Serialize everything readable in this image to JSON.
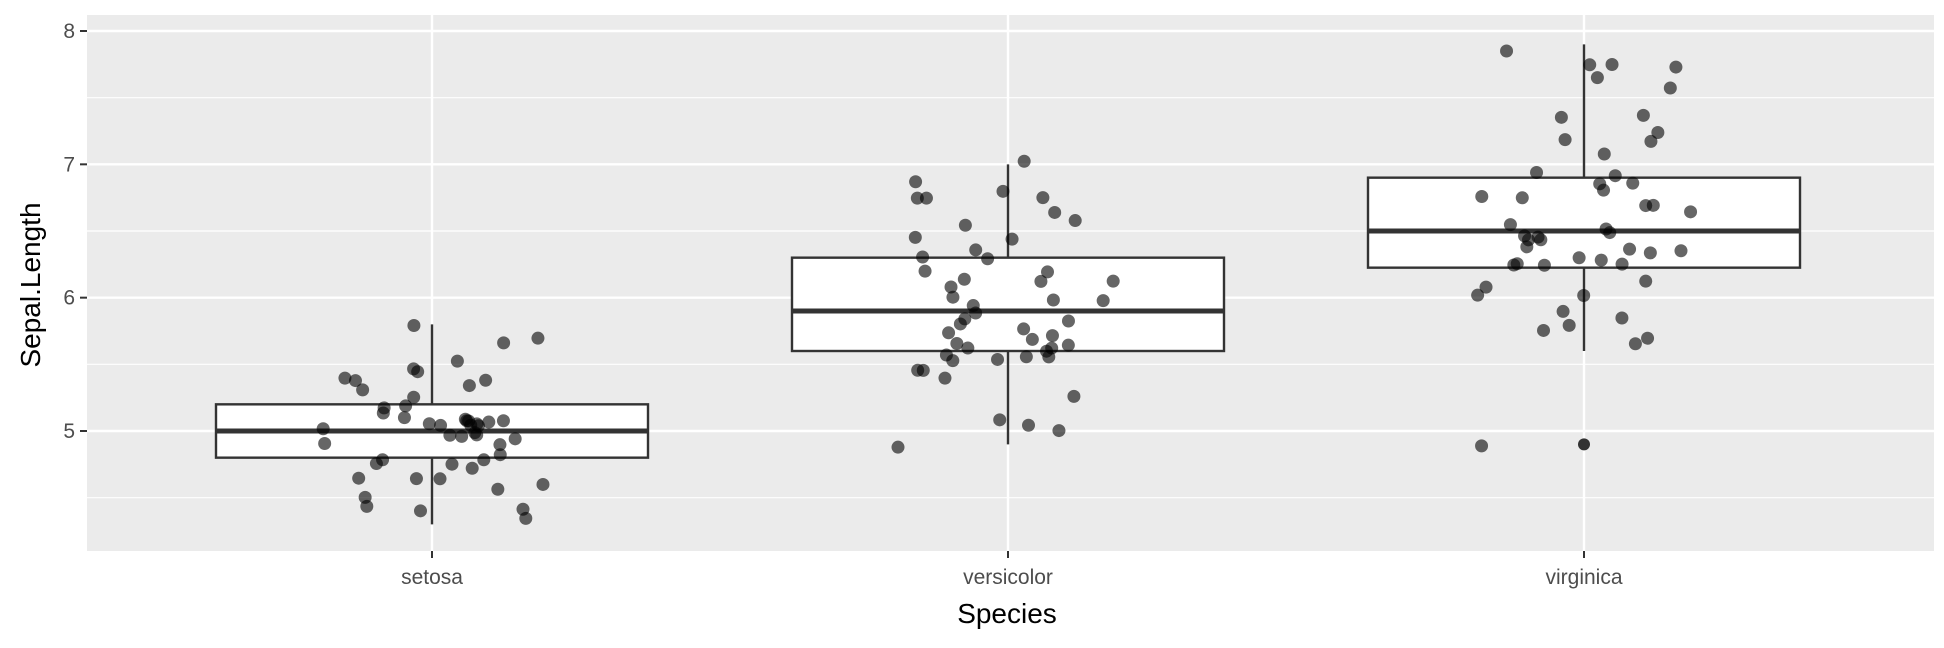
{
  "chart_data": {
    "type": "boxplot",
    "title": "",
    "xlabel": "Species",
    "ylabel": "Sepal.Length",
    "ylim": [
      4.1,
      8.1
    ],
    "yticks": [
      5,
      6,
      7,
      8
    ],
    "grid": true,
    "background": "#ebebeb",
    "categories": [
      "setosa",
      "versicolor",
      "virginica"
    ],
    "boxes": [
      {
        "category": "setosa",
        "whisker_low": 4.3,
        "q1": 4.8,
        "median": 5.0,
        "q3": 5.2,
        "whisker_high": 5.8,
        "outliers": []
      },
      {
        "category": "versicolor",
        "whisker_low": 4.9,
        "q1": 5.6,
        "median": 5.9,
        "q3": 6.3,
        "whisker_high": 7.0,
        "outliers": []
      },
      {
        "category": "virginica",
        "whisker_low": 5.6,
        "q1": 6.225,
        "median": 6.5,
        "q3": 6.9,
        "whisker_high": 7.9,
        "outliers": [
          4.9
        ]
      }
    ],
    "points": [
      {
        "category": "setosa",
        "values": [
          5.1,
          4.9,
          4.7,
          4.6,
          5.0,
          5.4,
          4.6,
          5.0,
          4.4,
          4.9,
          5.4,
          4.8,
          4.8,
          4.3,
          5.8,
          5.7,
          5.4,
          5.1,
          5.7,
          5.1,
          5.4,
          5.1,
          4.6,
          5.1,
          4.8,
          5.0,
          5.0,
          5.2,
          5.2,
          4.7,
          4.8,
          5.4,
          5.2,
          5.5,
          4.9,
          5.0,
          5.5,
          4.9,
          4.4,
          5.1,
          5.0,
          4.5,
          4.4,
          5.0,
          5.1,
          4.8,
          5.1,
          4.6,
          5.3,
          5.0
        ]
      },
      {
        "category": "versicolor",
        "values": [
          7.0,
          6.4,
          6.9,
          5.5,
          6.5,
          5.7,
          6.3,
          4.9,
          6.6,
          5.2,
          5.0,
          5.9,
          6.0,
          6.1,
          5.6,
          6.7,
          5.6,
          5.8,
          6.2,
          5.6,
          5.9,
          6.1,
          6.3,
          6.1,
          6.4,
          6.6,
          6.8,
          6.7,
          6.0,
          5.7,
          5.5,
          5.5,
          5.8,
          6.0,
          5.4,
          6.0,
          6.7,
          6.3,
          5.6,
          5.5,
          5.5,
          6.1,
          5.8,
          5.0,
          5.6,
          5.7,
          5.7,
          6.2,
          5.1,
          5.7
        ]
      },
      {
        "category": "virginica",
        "values": [
          6.3,
          5.8,
          7.1,
          6.3,
          6.5,
          7.6,
          4.9,
          7.3,
          6.7,
          7.2,
          6.5,
          6.4,
          6.8,
          5.7,
          5.8,
          6.4,
          6.5,
          7.7,
          7.7,
          6.0,
          6.9,
          5.6,
          7.7,
          6.3,
          6.7,
          7.2,
          6.2,
          6.1,
          6.4,
          7.2,
          7.4,
          7.9,
          6.4,
          6.3,
          6.1,
          7.7,
          6.3,
          6.4,
          6.0,
          6.9,
          6.7,
          6.9,
          5.8,
          6.8,
          6.7,
          6.7,
          6.3,
          6.5,
          6.2,
          5.9
        ]
      }
    ],
    "colors": {
      "panel": "#ebebeb",
      "grid_major": "#ffffff",
      "box_fill": "#ffffff",
      "box_stroke": "#333333",
      "point": "#000000"
    }
  }
}
